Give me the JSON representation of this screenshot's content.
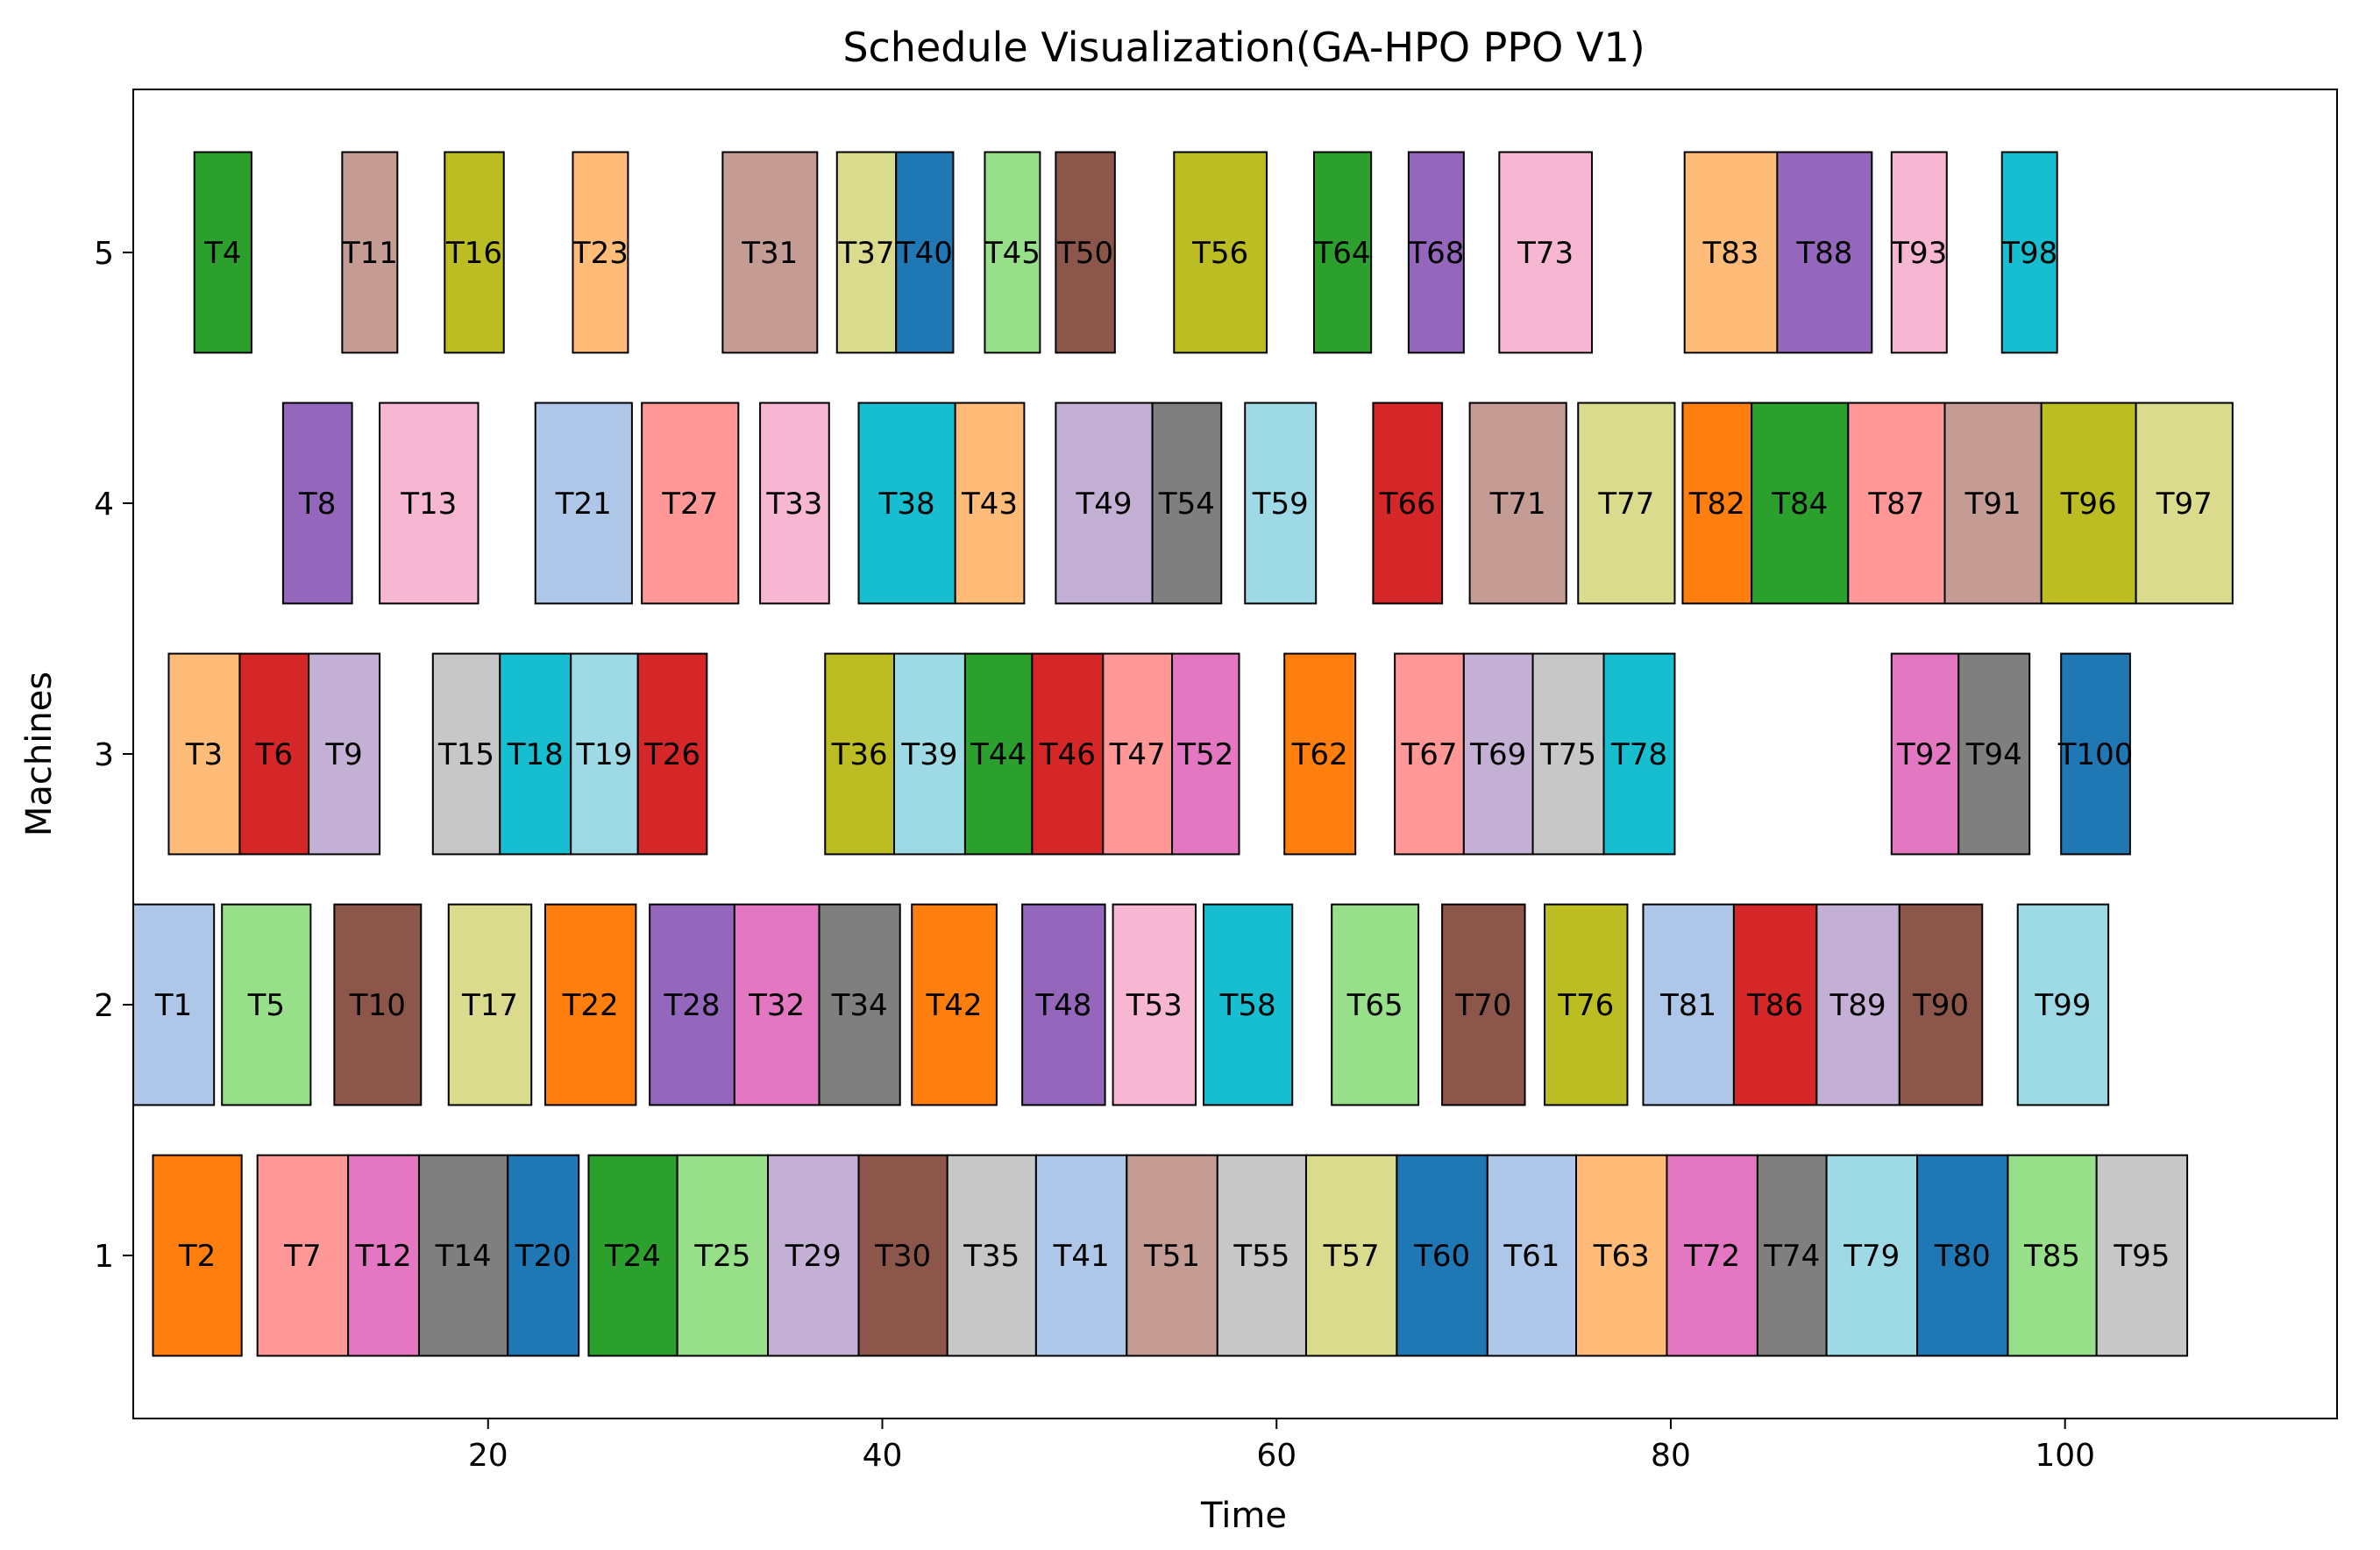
{
  "chart_data": {
    "type": "gantt",
    "title": "Schedule Visualization(GA-HPO PPO V1)",
    "xlabel": "Time",
    "ylabel": "Machines",
    "xlim": [
      2.0,
      113.8
    ],
    "ylim": [
      0.35,
      5.65
    ],
    "xticks": [
      20,
      40,
      60,
      80,
      100
    ],
    "yticks": [
      1,
      2,
      3,
      4,
      5
    ],
    "bar_height": 0.8,
    "colors": {
      "blue": "#1f77b4",
      "lightblue": "#aec7e8",
      "orange": "#ff7f0e",
      "lightorange": "#ffbb78",
      "green": "#2ca02c",
      "lightgreen": "#98df8a",
      "red": "#d62728",
      "lightred": "#ff9896",
      "purple": "#9467bd",
      "lightpurple": "#c5b0d5",
      "brown": "#8c564b",
      "lightbrown": "#c49c94",
      "pink": "#e377c2",
      "lightpink": "#f7b6d2",
      "gray": "#7f7f7f",
      "lightgray": "#c7c7c7",
      "olive": "#bcbd22",
      "lightolive": "#dbdb8d",
      "cyan": "#17becf",
      "lightcyan": "#9edae5"
    },
    "tasks": [
      {
        "label": "T2",
        "machine": 1,
        "start": 3.0,
        "end": 7.5,
        "color": "orange"
      },
      {
        "label": "T7",
        "machine": 1,
        "start": 8.3,
        "end": 12.9,
        "color": "lightred"
      },
      {
        "label": "T12",
        "machine": 1,
        "start": 12.9,
        "end": 16.5,
        "color": "pink"
      },
      {
        "label": "T14",
        "machine": 1,
        "start": 16.5,
        "end": 21.0,
        "color": "gray"
      },
      {
        "label": "T20",
        "machine": 1,
        "start": 21.0,
        "end": 24.6,
        "color": "blue"
      },
      {
        "label": "T24",
        "machine": 1,
        "start": 25.1,
        "end": 29.6,
        "color": "green"
      },
      {
        "label": "T25",
        "machine": 1,
        "start": 29.6,
        "end": 34.2,
        "color": "lightgreen"
      },
      {
        "label": "T29",
        "machine": 1,
        "start": 34.2,
        "end": 38.8,
        "color": "lightpurple"
      },
      {
        "label": "T30",
        "machine": 1,
        "start": 38.8,
        "end": 43.3,
        "color": "brown"
      },
      {
        "label": "T35",
        "machine": 1,
        "start": 43.3,
        "end": 47.8,
        "color": "lightgray"
      },
      {
        "label": "T41",
        "machine": 1,
        "start": 47.8,
        "end": 52.4,
        "color": "lightblue"
      },
      {
        "label": "T51",
        "machine": 1,
        "start": 52.4,
        "end": 57.0,
        "color": "lightbrown"
      },
      {
        "label": "T55",
        "machine": 1,
        "start": 57.0,
        "end": 61.5,
        "color": "lightgray"
      },
      {
        "label": "T57",
        "machine": 1,
        "start": 61.5,
        "end": 66.1,
        "color": "lightolive"
      },
      {
        "label": "T60",
        "machine": 1,
        "start": 66.1,
        "end": 70.7,
        "color": "blue"
      },
      {
        "label": "T61",
        "machine": 1,
        "start": 70.7,
        "end": 75.2,
        "color": "lightblue"
      },
      {
        "label": "T63",
        "machine": 1,
        "start": 75.2,
        "end": 79.8,
        "color": "lightorange"
      },
      {
        "label": "T72",
        "machine": 1,
        "start": 79.8,
        "end": 84.4,
        "color": "pink"
      },
      {
        "label": "T74",
        "machine": 1,
        "start": 84.4,
        "end": 87.9,
        "color": "gray"
      },
      {
        "label": "T79",
        "machine": 1,
        "start": 87.9,
        "end": 92.5,
        "color": "lightcyan"
      },
      {
        "label": "T80",
        "machine": 1,
        "start": 92.5,
        "end": 97.1,
        "color": "blue"
      },
      {
        "label": "T85",
        "machine": 1,
        "start": 97.1,
        "end": 101.6,
        "color": "lightgreen"
      },
      {
        "label": "T95",
        "machine": 1,
        "start": 101.6,
        "end": 106.2,
        "color": "lightgray"
      },
      {
        "label": "T1",
        "machine": 2,
        "start": 2.0,
        "end": 6.1,
        "color": "lightblue"
      },
      {
        "label": "T5",
        "machine": 2,
        "start": 6.5,
        "end": 11.0,
        "color": "lightgreen"
      },
      {
        "label": "T10",
        "machine": 2,
        "start": 12.2,
        "end": 16.6,
        "color": "brown"
      },
      {
        "label": "T17",
        "machine": 2,
        "start": 18.0,
        "end": 22.2,
        "color": "lightolive"
      },
      {
        "label": "T22",
        "machine": 2,
        "start": 22.9,
        "end": 27.5,
        "color": "orange"
      },
      {
        "label": "T28",
        "machine": 2,
        "start": 28.2,
        "end": 32.5,
        "color": "purple"
      },
      {
        "label": "T32",
        "machine": 2,
        "start": 32.5,
        "end": 36.8,
        "color": "pink"
      },
      {
        "label": "T34",
        "machine": 2,
        "start": 36.8,
        "end": 40.9,
        "color": "gray"
      },
      {
        "label": "T42",
        "machine": 2,
        "start": 41.5,
        "end": 45.8,
        "color": "orange"
      },
      {
        "label": "T48",
        "machine": 2,
        "start": 47.1,
        "end": 51.3,
        "color": "purple"
      },
      {
        "label": "T53",
        "machine": 2,
        "start": 51.7,
        "end": 55.9,
        "color": "lightpink"
      },
      {
        "label": "T58",
        "machine": 2,
        "start": 56.3,
        "end": 60.8,
        "color": "cyan"
      },
      {
        "label": "T65",
        "machine": 2,
        "start": 62.8,
        "end": 67.2,
        "color": "lightgreen"
      },
      {
        "label": "T70",
        "machine": 2,
        "start": 68.4,
        "end": 72.6,
        "color": "brown"
      },
      {
        "label": "T76",
        "machine": 2,
        "start": 73.6,
        "end": 77.8,
        "color": "olive"
      },
      {
        "label": "T81",
        "machine": 2,
        "start": 78.6,
        "end": 83.2,
        "color": "lightblue"
      },
      {
        "label": "T86",
        "machine": 2,
        "start": 83.2,
        "end": 87.4,
        "color": "red"
      },
      {
        "label": "T89",
        "machine": 2,
        "start": 87.4,
        "end": 91.6,
        "color": "lightpurple"
      },
      {
        "label": "T90",
        "machine": 2,
        "start": 91.6,
        "end": 95.8,
        "color": "brown"
      },
      {
        "label": "T99",
        "machine": 2,
        "start": 97.6,
        "end": 102.2,
        "color": "lightcyan"
      },
      {
        "label": "T3",
        "machine": 3,
        "start": 3.8,
        "end": 7.4,
        "color": "lightorange"
      },
      {
        "label": "T6",
        "machine": 3,
        "start": 7.4,
        "end": 10.9,
        "color": "red"
      },
      {
        "label": "T9",
        "machine": 3,
        "start": 10.9,
        "end": 14.5,
        "color": "lightpurple"
      },
      {
        "label": "T15",
        "machine": 3,
        "start": 17.2,
        "end": 20.6,
        "color": "lightgray"
      },
      {
        "label": "T18",
        "machine": 3,
        "start": 20.6,
        "end": 24.2,
        "color": "cyan"
      },
      {
        "label": "T19",
        "machine": 3,
        "start": 24.2,
        "end": 27.6,
        "color": "lightcyan"
      },
      {
        "label": "T26",
        "machine": 3,
        "start": 27.6,
        "end": 31.1,
        "color": "red"
      },
      {
        "label": "T36",
        "machine": 3,
        "start": 37.1,
        "end": 40.6,
        "color": "olive"
      },
      {
        "label": "T39",
        "machine": 3,
        "start": 40.6,
        "end": 44.2,
        "color": "lightcyan"
      },
      {
        "label": "T44",
        "machine": 3,
        "start": 44.2,
        "end": 47.6,
        "color": "green"
      },
      {
        "label": "T46",
        "machine": 3,
        "start": 47.6,
        "end": 51.2,
        "color": "red"
      },
      {
        "label": "T47",
        "machine": 3,
        "start": 51.2,
        "end": 54.7,
        "color": "lightred"
      },
      {
        "label": "T52",
        "machine": 3,
        "start": 54.7,
        "end": 58.1,
        "color": "pink"
      },
      {
        "label": "T62",
        "machine": 3,
        "start": 60.4,
        "end": 64.0,
        "color": "orange"
      },
      {
        "label": "T67",
        "machine": 3,
        "start": 66.0,
        "end": 69.5,
        "color": "lightred"
      },
      {
        "label": "T69",
        "machine": 3,
        "start": 69.5,
        "end": 73.0,
        "color": "lightpurple"
      },
      {
        "label": "T75",
        "machine": 3,
        "start": 73.0,
        "end": 76.6,
        "color": "lightgray"
      },
      {
        "label": "T78",
        "machine": 3,
        "start": 76.6,
        "end": 80.2,
        "color": "cyan"
      },
      {
        "label": "T92",
        "machine": 3,
        "start": 91.2,
        "end": 94.6,
        "color": "pink"
      },
      {
        "label": "T94",
        "machine": 3,
        "start": 94.6,
        "end": 98.2,
        "color": "gray"
      },
      {
        "label": "T100",
        "machine": 3,
        "start": 99.8,
        "end": 103.3,
        "color": "blue"
      },
      {
        "label": "T8",
        "machine": 4,
        "start": 9.6,
        "end": 13.1,
        "color": "purple"
      },
      {
        "label": "T13",
        "machine": 4,
        "start": 14.5,
        "end": 19.5,
        "color": "lightpink"
      },
      {
        "label": "T21",
        "machine": 4,
        "start": 22.4,
        "end": 27.3,
        "color": "lightblue"
      },
      {
        "label": "T27",
        "machine": 4,
        "start": 27.8,
        "end": 32.7,
        "color": "lightred"
      },
      {
        "label": "T33",
        "machine": 4,
        "start": 33.8,
        "end": 37.3,
        "color": "lightpink"
      },
      {
        "label": "T38",
        "machine": 4,
        "start": 38.8,
        "end": 43.7,
        "color": "cyan"
      },
      {
        "label": "T43",
        "machine": 4,
        "start": 43.7,
        "end": 47.2,
        "color": "lightorange"
      },
      {
        "label": "T49",
        "machine": 4,
        "start": 48.8,
        "end": 53.7,
        "color": "lightpurple"
      },
      {
        "label": "T54",
        "machine": 4,
        "start": 53.7,
        "end": 57.2,
        "color": "gray"
      },
      {
        "label": "T59",
        "machine": 4,
        "start": 58.4,
        "end": 62.0,
        "color": "lightcyan"
      },
      {
        "label": "T66",
        "machine": 4,
        "start": 64.9,
        "end": 68.4,
        "color": "red"
      },
      {
        "label": "T71",
        "machine": 4,
        "start": 69.8,
        "end": 74.7,
        "color": "lightbrown"
      },
      {
        "label": "T77",
        "machine": 4,
        "start": 75.3,
        "end": 80.2,
        "color": "lightolive"
      },
      {
        "label": "T82",
        "machine": 4,
        "start": 80.6,
        "end": 84.1,
        "color": "orange"
      },
      {
        "label": "T84",
        "machine": 4,
        "start": 84.1,
        "end": 89.0,
        "color": "green"
      },
      {
        "label": "T87",
        "machine": 4,
        "start": 89.0,
        "end": 93.9,
        "color": "lightred"
      },
      {
        "label": "T91",
        "machine": 4,
        "start": 93.9,
        "end": 98.8,
        "color": "lightbrown"
      },
      {
        "label": "T96",
        "machine": 4,
        "start": 98.8,
        "end": 103.6,
        "color": "olive"
      },
      {
        "label": "T97",
        "machine": 4,
        "start": 103.6,
        "end": 108.5,
        "color": "lightolive"
      },
      {
        "label": "T4",
        "machine": 5,
        "start": 5.1,
        "end": 8.0,
        "color": "green"
      },
      {
        "label": "T11",
        "machine": 5,
        "start": 12.6,
        "end": 15.4,
        "color": "lightbrown"
      },
      {
        "label": "T16",
        "machine": 5,
        "start": 17.8,
        "end": 20.8,
        "color": "olive"
      },
      {
        "label": "T23",
        "machine": 5,
        "start": 24.3,
        "end": 27.1,
        "color": "lightorange"
      },
      {
        "label": "T31",
        "machine": 5,
        "start": 31.9,
        "end": 36.7,
        "color": "lightbrown"
      },
      {
        "label": "T37",
        "machine": 5,
        "start": 37.7,
        "end": 40.7,
        "color": "lightolive"
      },
      {
        "label": "T40",
        "machine": 5,
        "start": 40.7,
        "end": 43.6,
        "color": "blue"
      },
      {
        "label": "T45",
        "machine": 5,
        "start": 45.2,
        "end": 48.0,
        "color": "lightgreen"
      },
      {
        "label": "T50",
        "machine": 5,
        "start": 48.8,
        "end": 51.8,
        "color": "brown"
      },
      {
        "label": "T56",
        "machine": 5,
        "start": 54.8,
        "end": 59.5,
        "color": "olive"
      },
      {
        "label": "T64",
        "machine": 5,
        "start": 61.9,
        "end": 64.8,
        "color": "green"
      },
      {
        "label": "T68",
        "machine": 5,
        "start": 66.7,
        "end": 69.5,
        "color": "purple"
      },
      {
        "label": "T73",
        "machine": 5,
        "start": 71.3,
        "end": 76.0,
        "color": "lightpink"
      },
      {
        "label": "T83",
        "machine": 5,
        "start": 80.7,
        "end": 85.4,
        "color": "lightorange"
      },
      {
        "label": "T88",
        "machine": 5,
        "start": 85.4,
        "end": 90.2,
        "color": "purple"
      },
      {
        "label": "T93",
        "machine": 5,
        "start": 91.2,
        "end": 94.0,
        "color": "lightpink"
      },
      {
        "label": "T98",
        "machine": 5,
        "start": 96.8,
        "end": 99.6,
        "color": "cyan"
      }
    ]
  }
}
